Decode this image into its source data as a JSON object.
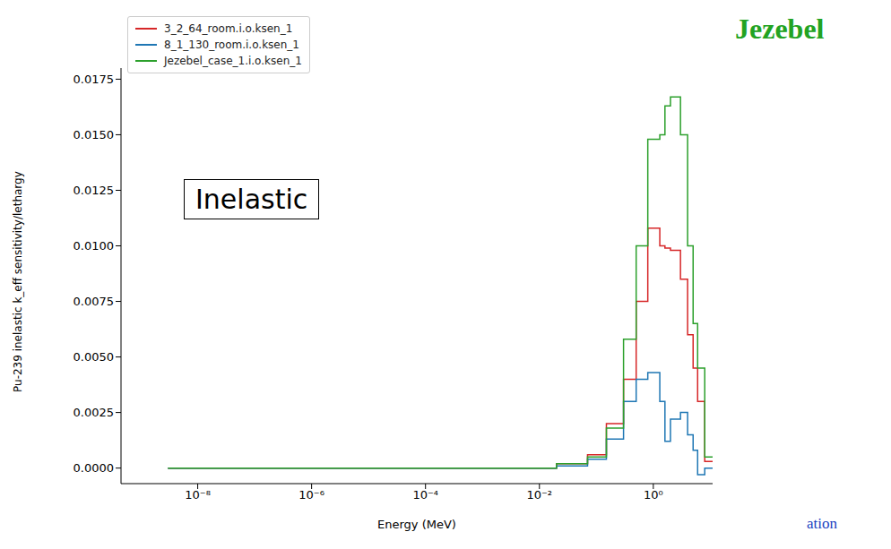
{
  "chart_data": {
    "type": "line",
    "x_label": "Energy (MeV)",
    "y_label": "Pu-239 inelastic k_eff sensitivity/lethargy",
    "log": "x",
    "grid": false,
    "legend": "upper left",
    "line_style": "step",
    "annotations": [
      "Jezebel",
      "Inelastic",
      "ation"
    ],
    "x": [
      3e-09,
      0.02,
      0.07,
      0.15,
      0.3,
      0.5,
      0.8,
      1.3,
      1.6,
      2,
      3,
      4,
      5,
      6,
      8,
      12
    ],
    "xlim": [
      4.5e-10,
      11
    ],
    "xticks": [
      {
        "value": 1e-08,
        "label": "10⁻⁸"
      },
      {
        "value": 1e-06,
        "label": "10⁻⁶"
      },
      {
        "value": 0.0001,
        "label": "10⁻⁴"
      },
      {
        "value": 0.01,
        "label": "10⁻²"
      },
      {
        "value": 1,
        "label": "10⁰"
      }
    ],
    "ylim": [
      -0.0007,
      0.018
    ],
    "yticks": [
      {
        "value": 0,
        "label": "0.0000"
      },
      {
        "value": 0.0025,
        "label": "0.0025"
      },
      {
        "value": 0.005,
        "label": "0.0050"
      },
      {
        "value": 0.0075,
        "label": "0.0075"
      },
      {
        "value": 0.01,
        "label": "0.0100"
      },
      {
        "value": 0.0125,
        "label": "0.0125"
      },
      {
        "value": 0.015,
        "label": "0.0150"
      },
      {
        "value": 0.0175,
        "label": "0.0175"
      }
    ],
    "series": [
      {
        "name": "3_2_64_room.i.o.ksen_1",
        "color": "#d62728",
        "values": [
          0,
          0.0002,
          0.0006,
          0.002,
          0.004,
          0.0075,
          0.0108,
          0.01,
          0.0099,
          0.0098,
          0.0085,
          0.006,
          0.0045,
          0.003,
          0.0003,
          0
        ]
      },
      {
        "name": "8_1_130_room.i.o.ksen_1",
        "color": "#1f77b4",
        "values": [
          0,
          0.0001,
          0.0004,
          0.0013,
          0.003,
          0.004,
          0.0043,
          0.003,
          0.0012,
          0.0022,
          0.0025,
          0.0015,
          0.0008,
          -0.0003,
          0,
          0
        ]
      },
      {
        "name": "Jezebel_case_1.i.o.ksen_1",
        "color": "#2ca02c",
        "values": [
          0,
          0.0002,
          0.0005,
          0.0018,
          0.0058,
          0.01,
          0.0148,
          0.015,
          0.0163,
          0.0167,
          0.015,
          0.01,
          0.0065,
          0.0045,
          0.0005,
          0
        ]
      }
    ]
  }
}
